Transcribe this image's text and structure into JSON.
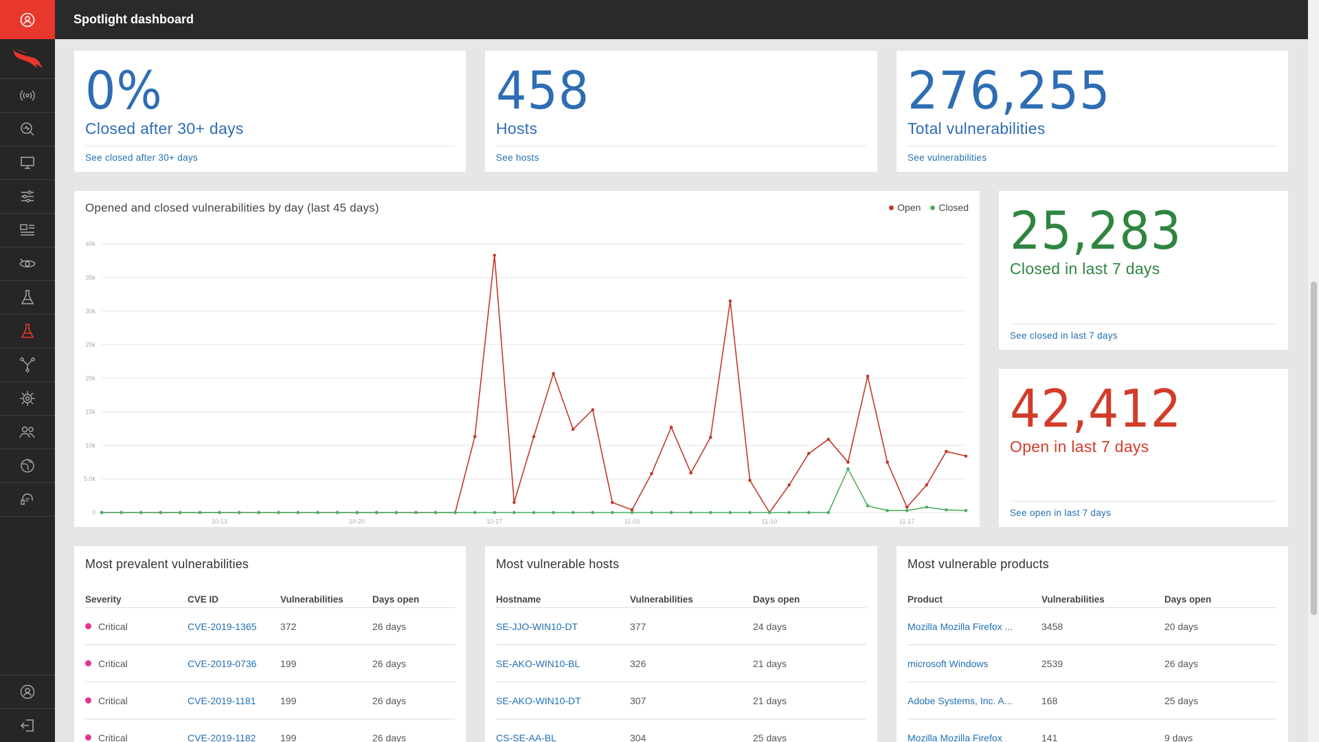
{
  "header": {
    "title": "Spotlight dashboard"
  },
  "sidebar": {
    "top_icon": "user-circle-icon",
    "items": [
      {
        "name": "falcon-logo"
      },
      {
        "name": "radio-signal-icon"
      },
      {
        "name": "search-activity-icon"
      },
      {
        "name": "monitor-icon"
      },
      {
        "name": "sliders-icon"
      },
      {
        "name": "dashboard-icon"
      },
      {
        "name": "eye-icon"
      },
      {
        "name": "flask-icon"
      },
      {
        "name": "flask-active-icon"
      },
      {
        "name": "network-icon"
      },
      {
        "name": "target-icon"
      },
      {
        "name": "users-icon"
      },
      {
        "name": "globe-icon"
      },
      {
        "name": "support-icon"
      }
    ],
    "bottom": [
      {
        "name": "account-icon"
      },
      {
        "name": "logout-icon"
      }
    ]
  },
  "stats": {
    "closed30": {
      "value": "0%",
      "label": "Closed after 30+ days",
      "link": "See closed after 30+ days"
    },
    "hosts": {
      "value": "458",
      "label": "Hosts",
      "link": "See hosts"
    },
    "total": {
      "value": "276,255",
      "label": "Total vulnerabilities",
      "link": "See vulnerabilities"
    },
    "closed7": {
      "value": "25,283",
      "label": "Closed in last 7 days",
      "link": "See closed in last 7 days"
    },
    "open7": {
      "value": "42,412",
      "label": "Open in last 7 days",
      "link": "See open in last 7 days"
    }
  },
  "colors": {
    "open": "#c0392b",
    "closed": "#4caf62",
    "link": "#1f6fb2",
    "critical": "#e6338f"
  },
  "chart_data": {
    "type": "line",
    "title": "Opened and closed vulnerabilities by day (last 45 days)",
    "legend_position": "top-right",
    "grid": true,
    "ylim": [
      0,
      40000
    ],
    "y_ticks": [
      "0",
      "5.0k",
      "10k",
      "15k",
      "20k",
      "25k",
      "30k",
      "35k",
      "40k"
    ],
    "x_ticks": [
      "10-13",
      "10-20",
      "10-27",
      "11-03",
      "11-10",
      "11-17"
    ],
    "x_tick_index": [
      6,
      13,
      20,
      27,
      34,
      41
    ],
    "series": [
      {
        "name": "Open",
        "values": [
          0,
          0,
          0,
          0,
          0,
          0,
          0,
          0,
          0,
          0,
          0,
          0,
          0,
          0,
          0,
          0,
          0,
          0,
          0,
          11300,
          38300,
          1500,
          11300,
          20700,
          12400,
          15300,
          1500,
          400,
          5800,
          12700,
          5900,
          11200,
          31500,
          4800,
          0,
          4100,
          8800,
          10900,
          7500,
          20300,
          7500,
          800,
          4100,
          9100,
          8400
        ]
      },
      {
        "name": "Closed",
        "values": [
          0,
          0,
          0,
          0,
          0,
          0,
          0,
          0,
          0,
          0,
          0,
          0,
          0,
          0,
          0,
          0,
          0,
          0,
          0,
          0,
          0,
          0,
          0,
          0,
          0,
          0,
          0,
          0,
          0,
          0,
          0,
          0,
          0,
          0,
          0,
          0,
          0,
          0,
          6500,
          1000,
          300,
          300,
          800,
          400,
          300
        ]
      }
    ]
  },
  "prevalent": {
    "title": "Most prevalent vulnerabilities",
    "headers": [
      "Severity",
      "CVE ID",
      "Vulnerabilities",
      "Days open"
    ],
    "rows": [
      {
        "severity": "Critical",
        "cve": "CVE-2019-1365",
        "count": "372",
        "days": "26 days"
      },
      {
        "severity": "Critical",
        "cve": "CVE-2019-0736",
        "count": "199",
        "days": "26 days"
      },
      {
        "severity": "Critical",
        "cve": "CVE-2019-1181",
        "count": "199",
        "days": "26 days"
      },
      {
        "severity": "Critical",
        "cve": "CVE-2019-1182",
        "count": "199",
        "days": "26 days"
      }
    ]
  },
  "hosts_table": {
    "title": "Most vulnerable hosts",
    "headers": [
      "Hostname",
      "Vulnerabilities",
      "Days open"
    ],
    "rows": [
      {
        "host": "SE-JJO-WIN10-DT",
        "count": "377",
        "days": "24 days"
      },
      {
        "host": "SE-AKO-WIN10-BL",
        "count": "326",
        "days": "21 days"
      },
      {
        "host": "SE-AKO-WIN10-DT",
        "count": "307",
        "days": "21 days"
      },
      {
        "host": "CS-SE-AA-BL",
        "count": "304",
        "days": "25 days"
      }
    ]
  },
  "products": {
    "title": "Most vulnerable products",
    "headers": [
      "Product",
      "Vulnerabilities",
      "Days open"
    ],
    "rows": [
      {
        "product": "Mozilla Mozilla Firefox ...",
        "count": "3458",
        "days": "20 days"
      },
      {
        "product": "microsoft Windows",
        "count": "2539",
        "days": "26 days"
      },
      {
        "product": "Adobe Systems, Inc. A...",
        "count": "168",
        "days": "25 days"
      },
      {
        "product": "Mozilla Mozilla Firefox",
        "count": "141",
        "days": "9 days"
      }
    ]
  }
}
